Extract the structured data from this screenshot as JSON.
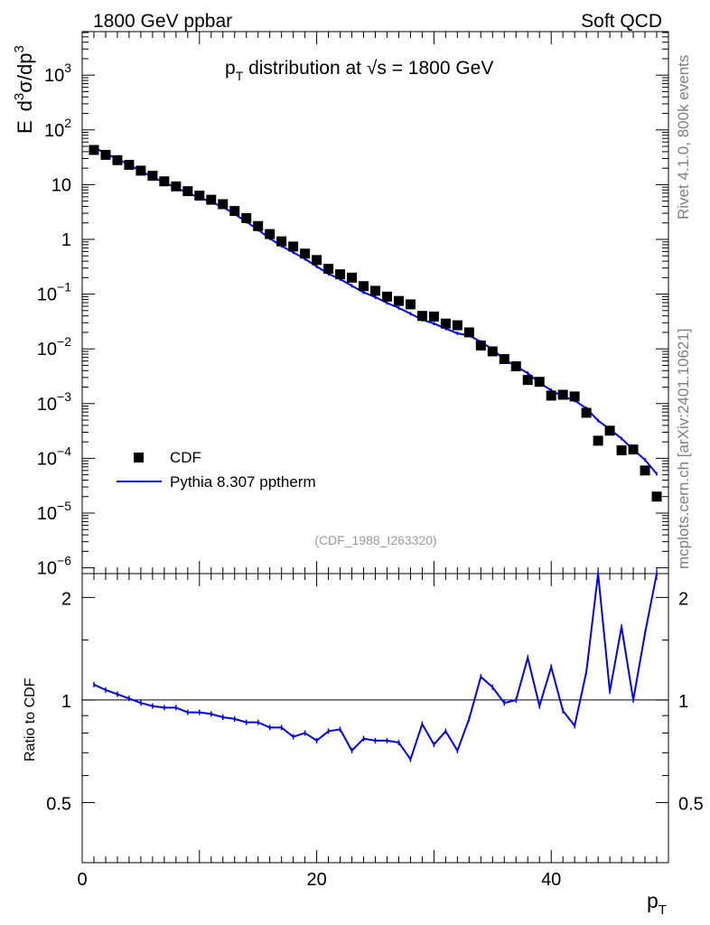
{
  "header": {
    "left": "1800 GeV ppbar",
    "right": "Soft QCD"
  },
  "side": {
    "top": "Rivet 4.1.0,  800k events",
    "bottom": "mcplots.cern.ch [arXiv:2401.10621]"
  },
  "chart_data": {
    "type": "scatter",
    "title": "p_T distribution at √s = 1800 GeV",
    "title_parts": {
      "p": "p",
      "T": "T",
      "mid": " distribution at ",
      "root": "√",
      "s": "s",
      "tail": " = 1800 GeV"
    },
    "ylabel_parts": {
      "E": "E",
      "d3": "d",
      "sup3a": "3",
      "sigma": "σ/dp",
      "sup3b": "3"
    },
    "xlabel_parts": {
      "p": "p",
      "T": "T"
    },
    "ratio_ylabel": "Ratio to CDF",
    "analysis_id": "(CDF_1988_I263320)",
    "xlim": [
      0,
      50
    ],
    "ylim_log": [
      1e-06,
      6000
    ],
    "ratio_ylim": [
      0.333,
      2.35
    ],
    "x_ticks": [
      "0",
      "20",
      "40"
    ],
    "y_ticks": [
      {
        "mant": "10",
        "exp": "3"
      },
      {
        "mant": "10",
        "exp": "2"
      },
      {
        "mant": "10",
        "exp": ""
      },
      {
        "mant": "1",
        "exp": ""
      },
      {
        "mant": "10",
        "exp": "−1"
      },
      {
        "mant": "10",
        "exp": "−2"
      },
      {
        "mant": "10",
        "exp": "−3"
      },
      {
        "mant": "10",
        "exp": "−4"
      },
      {
        "mant": "10",
        "exp": "−5"
      },
      {
        "mant": "10",
        "exp": "−6"
      }
    ],
    "ratio_ticks": [
      "2",
      "1",
      "0.5"
    ],
    "legend": {
      "placement": "lower-left",
      "entries": [
        "CDF",
        "Pythia 8.307 pptherm"
      ]
    },
    "colors": {
      "data": "#000000",
      "mc": "#0000ee"
    },
    "x": [
      1,
      2,
      3,
      4,
      5,
      6,
      7,
      8,
      9,
      10,
      11,
      12,
      13,
      14,
      15,
      16,
      17,
      18,
      19,
      20,
      21,
      22,
      23,
      24,
      25,
      26,
      27,
      28,
      29,
      30,
      31,
      32,
      33,
      34,
      35,
      36,
      37,
      38,
      39,
      40,
      41,
      42,
      43,
      44,
      45,
      46,
      47,
      48,
      49
    ],
    "series": [
      {
        "name": "CDF",
        "values": [
          43,
          35,
          28,
          23,
          18,
          14.5,
          11.5,
          9.3,
          7.6,
          6.3,
          5.3,
          4.4,
          3.3,
          2.45,
          1.75,
          1.25,
          0.92,
          0.74,
          0.55,
          0.42,
          0.29,
          0.23,
          0.2,
          0.14,
          0.115,
          0.09,
          0.075,
          0.065,
          0.04,
          0.039,
          0.029,
          0.027,
          0.02,
          0.0115,
          0.009,
          0.0065,
          0.0048,
          0.0027,
          0.0025,
          0.0014,
          0.00145,
          0.00135,
          0.00068,
          0.00021,
          0.00032,
          0.00014,
          0.000145,
          6e-05,
          2e-05
        ]
      },
      {
        "name": "Pythia 8.307 pptherm",
        "values": [
          47.7,
          37.5,
          29.0,
          23.2,
          17.6,
          13.9,
          10.9,
          8.8,
          7.0,
          5.8,
          4.8,
          3.9,
          2.9,
          2.1,
          1.5,
          1.04,
          0.76,
          0.58,
          0.44,
          0.32,
          0.235,
          0.188,
          0.142,
          0.108,
          0.088,
          0.069,
          0.056,
          0.044,
          0.034,
          0.029,
          0.0235,
          0.0192,
          0.0176,
          0.0134,
          0.0098,
          0.0064,
          0.0048,
          0.0036,
          0.0024,
          0.00175,
          0.00134,
          0.00114,
          0.00082,
          0.00049,
          0.00034,
          0.00023,
          0.000145,
          9.4e-05,
          5.2e-05
        ]
      }
    ],
    "ratio": [
      1.11,
      1.07,
      1.04,
      1.01,
      0.98,
      0.96,
      0.95,
      0.95,
      0.92,
      0.92,
      0.91,
      0.89,
      0.88,
      0.86,
      0.86,
      0.83,
      0.83,
      0.78,
      0.8,
      0.76,
      0.81,
      0.82,
      0.71,
      0.77,
      0.76,
      0.76,
      0.75,
      0.67,
      0.85,
      0.74,
      0.81,
      0.71,
      0.88,
      1.17,
      1.09,
      0.98,
      1.0,
      1.33,
      0.96,
      1.25,
      0.93,
      0.84,
      1.21,
      2.35,
      1.06,
      1.64,
      1.0,
      1.57,
      2.35
    ]
  }
}
